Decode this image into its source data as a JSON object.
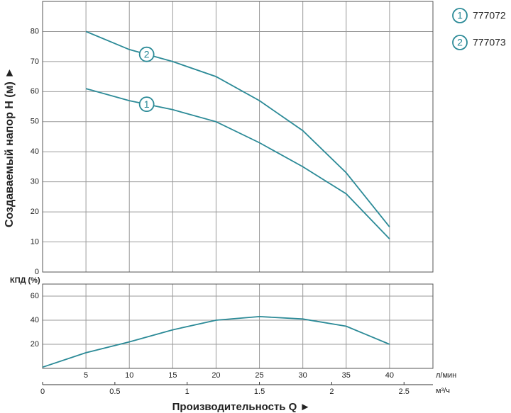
{
  "chart_data": [
    {
      "type": "line",
      "y_label": "Создаваемый напор H (м) ►",
      "x": [
        5,
        10,
        15,
        20,
        25,
        30,
        35,
        40
      ],
      "xlim": [
        0,
        45
      ],
      "ylim": [
        0,
        90
      ],
      "yticks": [
        0,
        10,
        20,
        30,
        40,
        50,
        60,
        70,
        80
      ],
      "grid": true,
      "legend": "upper right",
      "series": [
        {
          "name": "777072",
          "marker": "1",
          "color": "#2b8a97",
          "values": [
            61,
            57,
            54,
            50,
            43,
            35,
            26,
            11
          ]
        },
        {
          "name": "777073",
          "marker": "2",
          "color": "#2b8a97",
          "values": [
            80,
            74,
            70,
            65,
            57,
            47,
            33,
            15
          ]
        }
      ]
    },
    {
      "type": "line",
      "y_label": "КПД (%)",
      "x": [
        0,
        5,
        10,
        15,
        20,
        25,
        30,
        35,
        40
      ],
      "values": [
        1,
        13,
        22,
        32,
        40,
        43,
        41,
        35,
        20
      ],
      "color": "#2b8a97",
      "xlim": [
        0,
        45
      ],
      "ylim": [
        0,
        70
      ],
      "yticks": [
        20,
        40,
        60
      ],
      "grid": true,
      "xticks": [
        5,
        10,
        15,
        20,
        25,
        30,
        35,
        40
      ],
      "x_unit": "л/мин",
      "x2lim": [
        0,
        2.7
      ],
      "x2ticks": [
        0,
        0.5,
        1,
        1.5,
        2,
        2.5
      ],
      "x2_unit": "м³/ч",
      "x_label": "Производительность Q ►"
    }
  ]
}
